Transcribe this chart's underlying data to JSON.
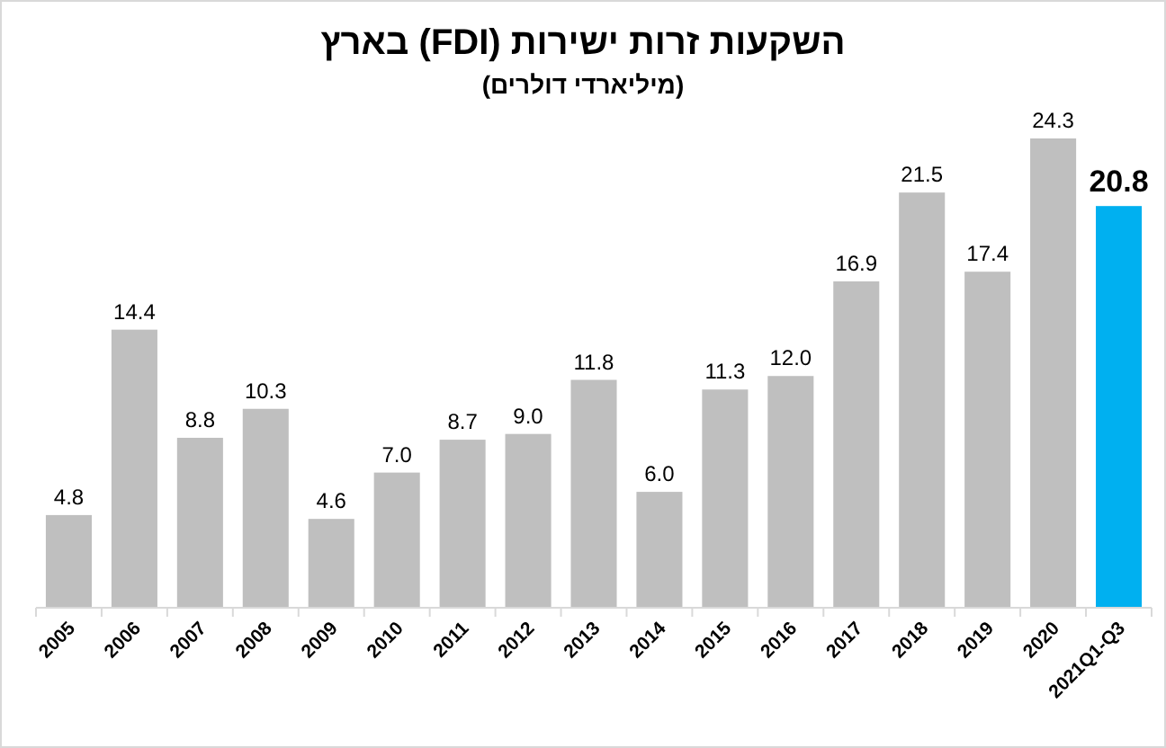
{
  "chart_data": {
    "type": "bar",
    "title": "השקעות זרות ישירות (FDI) בארץ",
    "subtitle": "(מיליארדי דולרים)",
    "categories": [
      "2005",
      "2006",
      "2007",
      "2008",
      "2009",
      "2010",
      "2011",
      "2012",
      "2013",
      "2014",
      "2015",
      "2016",
      "2017",
      "2018",
      "2019",
      "2020",
      "2021Q1-Q3"
    ],
    "values": [
      4.8,
      14.4,
      8.8,
      10.3,
      4.6,
      7.0,
      8.7,
      9.0,
      11.8,
      6.0,
      11.3,
      12.0,
      16.9,
      21.5,
      17.4,
      24.3,
      20.8
    ],
    "value_labels": [
      "4.8",
      "14.4",
      "8.8",
      "10.3",
      "4.6",
      "7.0",
      "8.7",
      "9.0",
      "11.8",
      "6.0",
      "11.3",
      "12.0",
      "16.9",
      "21.5",
      "17.4",
      "24.3",
      "20.8"
    ],
    "colors": [
      "#bfbfbf",
      "#bfbfbf",
      "#bfbfbf",
      "#bfbfbf",
      "#bfbfbf",
      "#bfbfbf",
      "#bfbfbf",
      "#bfbfbf",
      "#bfbfbf",
      "#bfbfbf",
      "#bfbfbf",
      "#bfbfbf",
      "#bfbfbf",
      "#bfbfbf",
      "#bfbfbf",
      "#bfbfbf",
      "#00b0f0"
    ],
    "data_labels": true
  }
}
